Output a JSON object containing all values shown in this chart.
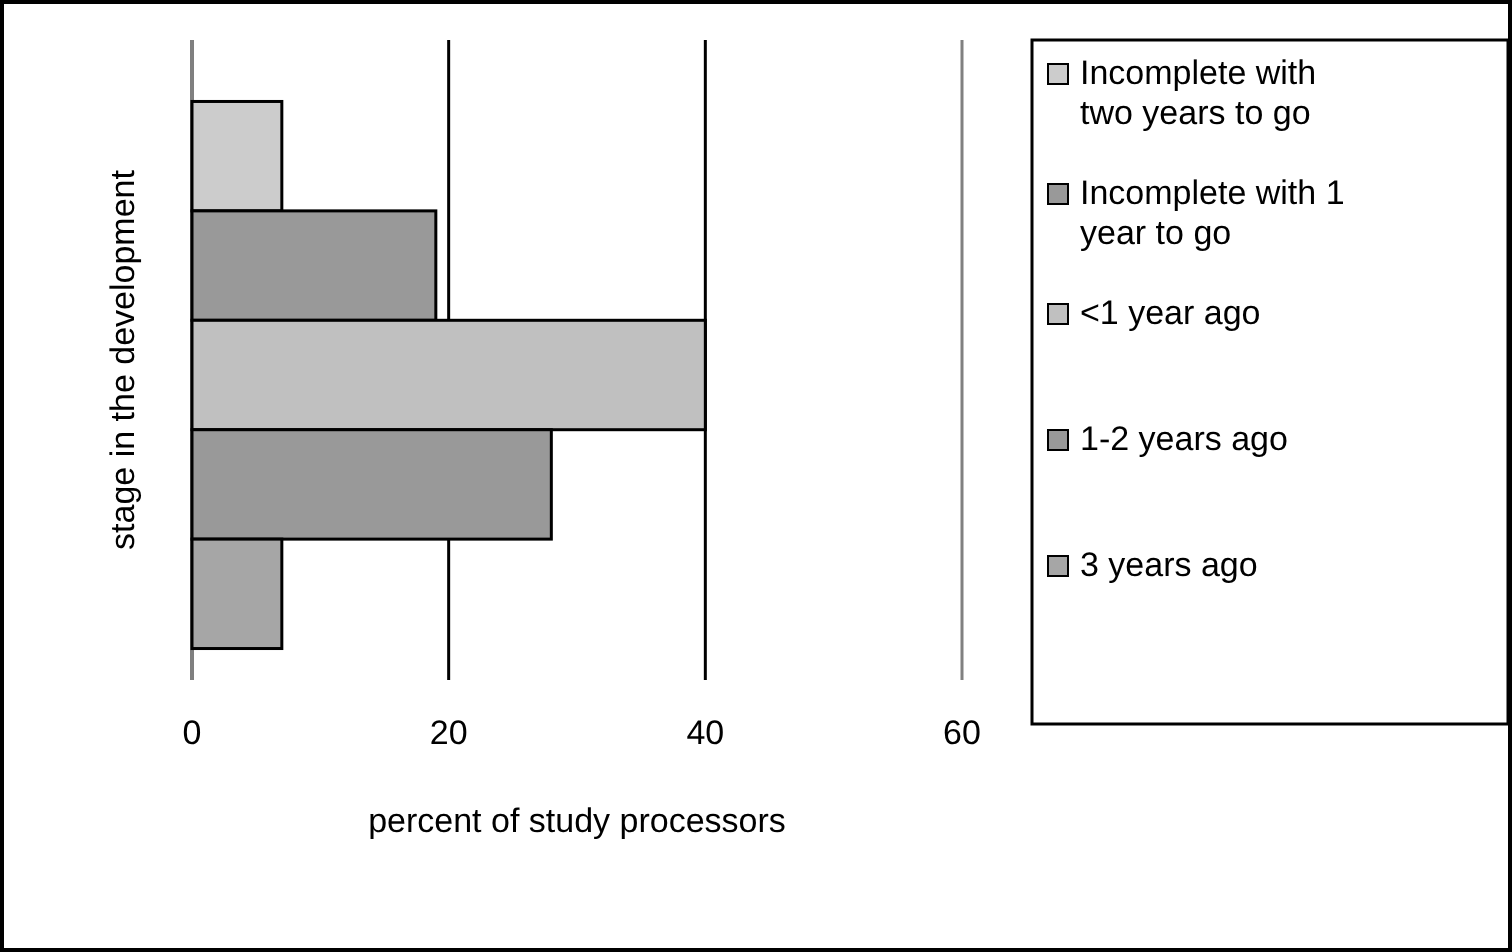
{
  "chart_data": {
    "type": "bar",
    "orientation": "horizontal",
    "xlabel": "percent of study processors",
    "ylabel": "stage in the development",
    "categories": [
      null,
      null,
      null,
      null,
      null
    ],
    "series": [
      {
        "name": "Incomplete with two years to go",
        "color": "#cccccc",
        "values": [
          7,
          null,
          null,
          null,
          null
        ]
      },
      {
        "name": "Incomplete with 1 year to go",
        "color": "#999999",
        "values": [
          null,
          19,
          null,
          null,
          null
        ]
      },
      {
        "name": "<1 year ago",
        "color": "#c0c0c0",
        "values": [
          null,
          null,
          40,
          null,
          null
        ]
      },
      {
        "name": "1-2 years ago",
        "color": "#999999",
        "values": [
          null,
          null,
          null,
          28,
          null
        ]
      },
      {
        "name": "3 years ago",
        "color": "#a6a6a6",
        "values": [
          null,
          null,
          null,
          null,
          7
        ]
      }
    ],
    "xlim": [
      0,
      60
    ],
    "xticks": [
      0,
      20,
      40,
      60
    ],
    "grid": "x",
    "legend": "right"
  }
}
